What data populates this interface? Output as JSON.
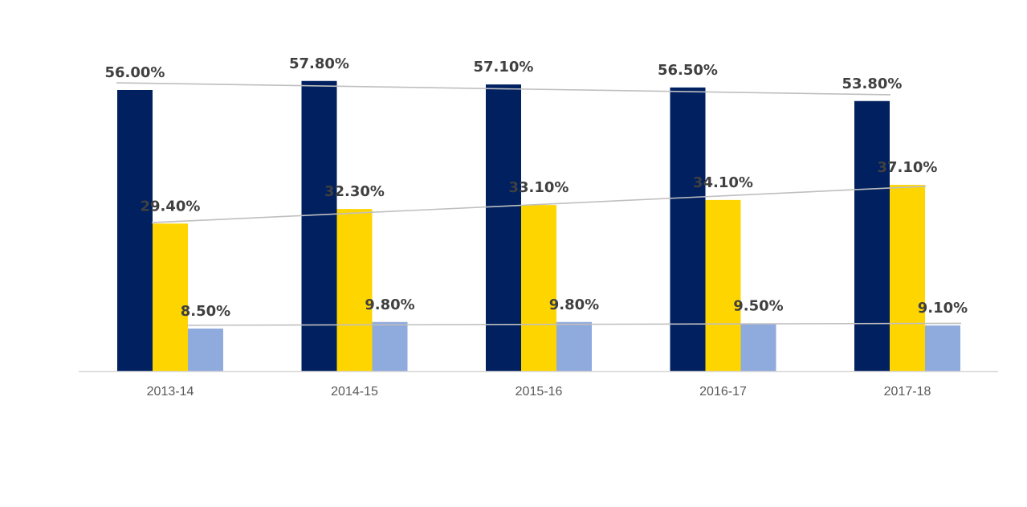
{
  "chart_data": {
    "type": "bar",
    "categories": [
      "2013-14",
      "2014-15",
      "2015-16",
      "2016-17",
      "2017-18"
    ],
    "series": [
      {
        "values": [
          56.0,
          57.8,
          57.1,
          56.5,
          53.8
        ],
        "labels": [
          "56.00%",
          "57.80%",
          "57.10%",
          "56.50%",
          "53.80%"
        ],
        "color": "#002060"
      },
      {
        "values": [
          29.4,
          32.3,
          33.1,
          34.1,
          37.1
        ],
        "labels": [
          "29.40%",
          "32.30%",
          "33.10%",
          "34.10%",
          "37.10%"
        ],
        "color": "#FFD500"
      },
      {
        "values": [
          8.5,
          9.8,
          9.8,
          9.5,
          9.1
        ],
        "labels": [
          "8.50%",
          "9.80%",
          "9.80%",
          "9.50%",
          "9.10%"
        ],
        "color": "#8FAADC"
      }
    ],
    "trendlines": true,
    "trendline_color": "#BFBFBF",
    "title": "",
    "xlabel": "",
    "ylabel": "",
    "legend": "none",
    "grid": false
  }
}
